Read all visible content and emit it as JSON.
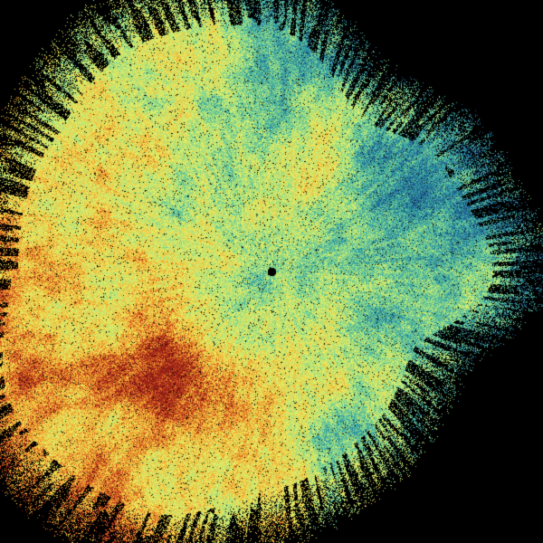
{
  "image": {
    "kind": "radar-ppi-scan",
    "background": "#000000",
    "center_marker_color": "#000000",
    "colormap": [
      "#1f5a8c",
      "#2c9aa6",
      "#5cc49a",
      "#a8e27e",
      "#e2f26c",
      "#f2d448",
      "#ee9a2c",
      "#c8401e",
      "#8a1a14"
    ]
  }
}
